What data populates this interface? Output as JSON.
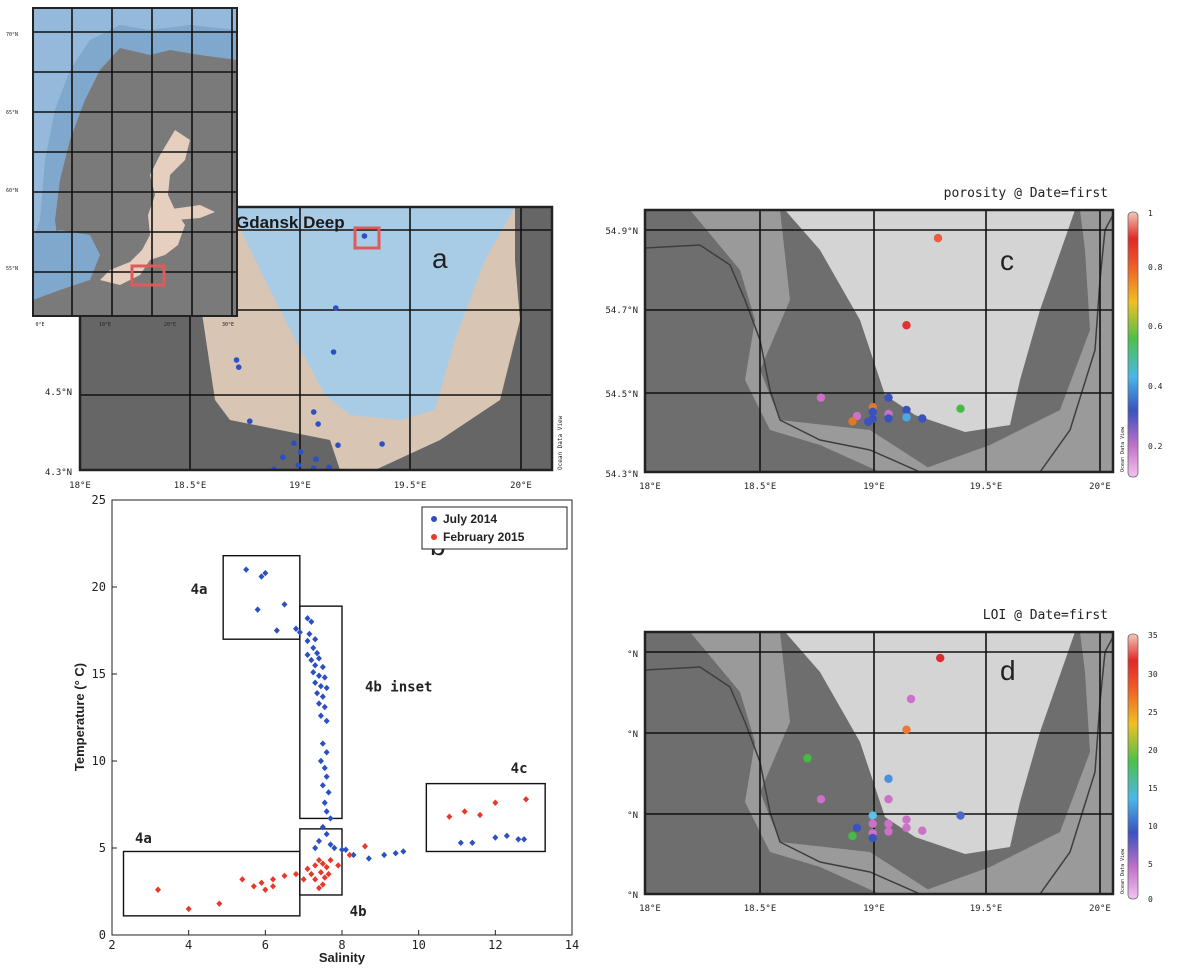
{
  "panel_a": {
    "title": "Gdansk Deep",
    "letter": "a",
    "lat_labels": [
      "4.5°N",
      "4.3°N"
    ],
    "lon_labels": [
      "18°E",
      "18.5°E",
      "19°E",
      "19.5°E",
      "20°E"
    ],
    "side_label": "Ocean Data View",
    "colors": {
      "water": "#a9cce6",
      "land": "#d9c5b4",
      "dark_land": "#666666",
      "point": "#2b4fc4",
      "highlight": "#e05a5a"
    },
    "stations": [
      {
        "lon": 19.29,
        "lat": 54.935
      },
      {
        "lon": 19.16,
        "lat": 54.755
      },
      {
        "lon": 19.15,
        "lat": 54.645
      },
      {
        "lon": 18.71,
        "lat": 54.625
      },
      {
        "lon": 18.72,
        "lat": 54.607
      },
      {
        "lon": 19.06,
        "lat": 54.495
      },
      {
        "lon": 18.77,
        "lat": 54.472
      },
      {
        "lon": 19.08,
        "lat": 54.465
      },
      {
        "lon": 18.97,
        "lat": 54.417
      },
      {
        "lon": 19.17,
        "lat": 54.412
      },
      {
        "lon": 19.37,
        "lat": 54.415
      },
      {
        "lon": 19.0,
        "lat": 54.395
      },
      {
        "lon": 18.92,
        "lat": 54.382
      },
      {
        "lon": 19.07,
        "lat": 54.377
      },
      {
        "lon": 18.99,
        "lat": 54.362
      },
      {
        "lon": 19.06,
        "lat": 54.355
      },
      {
        "lon": 19.13,
        "lat": 54.357
      },
      {
        "lon": 18.88,
        "lat": 54.352
      },
      {
        "lon": 18.9,
        "lat": 54.337
      },
      {
        "lon": 19.2,
        "lat": 54.346
      },
      {
        "lon": 19.29,
        "lat": 54.342
      },
      {
        "lon": 18.97,
        "lat": 54.332
      },
      {
        "lon": 18.99,
        "lat": 54.325
      }
    ]
  },
  "inset": {
    "lat_labels": [
      "70°N",
      "65°N",
      "60°N",
      "55°N"
    ],
    "lon_labels": [
      "0°E",
      "10°E",
      "20°E",
      "30°E"
    ],
    "colors": {
      "sea": "#7fa8cc",
      "land": "#7a7a7a",
      "baltic": "#e6cfbf"
    }
  },
  "panel_b": {
    "letter": "b",
    "chart_data": {
      "type": "scatter",
      "xlabel": "Salinity",
      "ylabel": "Temperature (° C)",
      "xlim": [
        2,
        14
      ],
      "ylim": [
        0,
        25
      ],
      "xticks": [
        2,
        4,
        6,
        8,
        10,
        12,
        14
      ],
      "yticks": [
        0,
        5,
        10,
        15,
        20,
        25
      ],
      "legend_position": "top-right",
      "series": [
        {
          "name": "July 2014",
          "color": "#2b4fc4",
          "points": [
            [
              5.5,
              21
            ],
            [
              5.9,
              20.6
            ],
            [
              6.0,
              20.8
            ],
            [
              5.8,
              18.7
            ],
            [
              6.3,
              17.5
            ],
            [
              6.5,
              19.0
            ],
            [
              6.8,
              17.6
            ],
            [
              6.9,
              17.4
            ],
            [
              7.1,
              18.2
            ],
            [
              7.2,
              18.0
            ],
            [
              7.15,
              17.3
            ],
            [
              7.1,
              16.9
            ],
            [
              7.3,
              17.0
            ],
            [
              7.25,
              16.5
            ],
            [
              7.1,
              16.1
            ],
            [
              7.35,
              16.2
            ],
            [
              7.2,
              15.8
            ],
            [
              7.4,
              15.9
            ],
            [
              7.3,
              15.5
            ],
            [
              7.5,
              15.4
            ],
            [
              7.25,
              15.1
            ],
            [
              7.4,
              14.9
            ],
            [
              7.55,
              14.8
            ],
            [
              7.3,
              14.5
            ],
            [
              7.45,
              14.3
            ],
            [
              7.6,
              14.2
            ],
            [
              7.35,
              13.9
            ],
            [
              7.5,
              13.7
            ],
            [
              7.4,
              13.3
            ],
            [
              7.55,
              13.1
            ],
            [
              7.45,
              12.6
            ],
            [
              7.6,
              12.3
            ],
            [
              7.5,
              11.0
            ],
            [
              7.6,
              10.5
            ],
            [
              7.45,
              10.0
            ],
            [
              7.55,
              9.6
            ],
            [
              7.6,
              9.1
            ],
            [
              7.5,
              8.6
            ],
            [
              7.65,
              8.2
            ],
            [
              7.55,
              7.6
            ],
            [
              7.6,
              7.1
            ],
            [
              7.7,
              6.7
            ],
            [
              7.5,
              6.2
            ],
            [
              7.6,
              5.8
            ],
            [
              7.4,
              5.4
            ],
            [
              7.7,
              5.2
            ],
            [
              7.3,
              5.0
            ],
            [
              7.8,
              5.0
            ],
            [
              8.0,
              4.9
            ],
            [
              8.3,
              4.6
            ],
            [
              8.1,
              4.9
            ],
            [
              8.7,
              4.4
            ],
            [
              9.1,
              4.6
            ],
            [
              9.4,
              4.7
            ],
            [
              9.6,
              4.8
            ],
            [
              11.1,
              5.3
            ],
            [
              11.4,
              5.3
            ],
            [
              12.0,
              5.6
            ],
            [
              12.3,
              5.7
            ],
            [
              12.6,
              5.5
            ],
            [
              12.75,
              5.5
            ]
          ]
        },
        {
          "name": "February 2015",
          "color": "#e8382a",
          "points": [
            [
              3.2,
              2.6
            ],
            [
              4.0,
              1.5
            ],
            [
              4.8,
              1.8
            ],
            [
              5.4,
              3.2
            ],
            [
              5.9,
              3.0
            ],
            [
              5.7,
              2.8
            ],
            [
              6.0,
              2.6
            ],
            [
              6.2,
              2.8
            ],
            [
              6.2,
              3.2
            ],
            [
              6.5,
              3.4
            ],
            [
              6.8,
              3.5
            ],
            [
              7.0,
              3.2
            ],
            [
              7.1,
              3.8
            ],
            [
              7.2,
              3.5
            ],
            [
              7.3,
              4.0
            ],
            [
              7.3,
              3.2
            ],
            [
              7.4,
              4.3
            ],
            [
              7.45,
              3.6
            ],
            [
              7.5,
              4.1
            ],
            [
              7.55,
              3.3
            ],
            [
              7.6,
              3.9
            ],
            [
              7.7,
              4.3
            ],
            [
              7.65,
              3.5
            ],
            [
              7.5,
              2.9
            ],
            [
              7.4,
              2.7
            ],
            [
              7.9,
              4.0
            ],
            [
              8.2,
              4.6
            ],
            [
              8.6,
              5.1
            ],
            [
              10.8,
              6.8
            ],
            [
              11.2,
              7.1
            ],
            [
              11.6,
              6.9
            ],
            [
              12.0,
              7.6
            ],
            [
              12.8,
              7.8
            ]
          ]
        }
      ],
      "annotations": [
        {
          "text": "4a",
          "x": 4.05,
          "y": 19.6
        },
        {
          "text": "4b inset",
          "x": 8.6,
          "y": 14.0
        },
        {
          "text": "4c",
          "x": 12.4,
          "y": 9.3
        },
        {
          "text": "4a",
          "x": 2.6,
          "y": 5.3
        },
        {
          "text": "4b",
          "x": 8.2,
          "y": 1.1
        }
      ],
      "boxes": [
        {
          "x0": 4.9,
          "x1": 6.9,
          "y0": 17.0,
          "y1": 21.8
        },
        {
          "x0": 6.9,
          "x1": 8.0,
          "y0": 6.7,
          "y1": 18.9
        },
        {
          "x0": 6.9,
          "x1": 8.0,
          "y0": 2.3,
          "y1": 6.1
        },
        {
          "x0": 2.3,
          "x1": 6.9,
          "y0": 1.1,
          "y1": 4.8
        },
        {
          "x0": 10.2,
          "x1": 13.3,
          "y0": 4.8,
          "y1": 8.7
        }
      ]
    }
  },
  "panel_c": {
    "title": "porosity @ Date=first",
    "letter": "c",
    "lat_labels": [
      "54.9°N",
      "54.7°N",
      "54.5°N",
      "54.3°N"
    ],
    "lon_labels": [
      "18°E",
      "18.5°E",
      "19°E",
      "19.5°E",
      "20°E"
    ],
    "colorbar_ticks": [
      "1",
      "0.8",
      "0.6",
      "0.4",
      "0.2"
    ],
    "colorbar_label": "Ocean Data View",
    "points": [
      {
        "lon": 19.28,
        "lat": 54.885,
        "color": "#ee5a3c"
      },
      {
        "lon": 19.14,
        "lat": 54.672,
        "color": "#e03030"
      },
      {
        "lon": 18.76,
        "lat": 54.495,
        "color": "#cc70c8"
      },
      {
        "lon": 19.06,
        "lat": 54.495,
        "color": "#3a52c0"
      },
      {
        "lon": 18.99,
        "lat": 54.472,
        "color": "#e07828"
      },
      {
        "lon": 19.38,
        "lat": 54.468,
        "color": "#44bb44"
      },
      {
        "lon": 19.14,
        "lat": 54.465,
        "color": "#3a52c0"
      },
      {
        "lon": 18.99,
        "lat": 54.46,
        "color": "#3a52c0"
      },
      {
        "lon": 19.06,
        "lat": 54.455,
        "color": "#cc70c8"
      },
      {
        "lon": 18.92,
        "lat": 54.45,
        "color": "#cc70c8"
      },
      {
        "lon": 19.14,
        "lat": 54.447,
        "color": "#4aa8e8"
      },
      {
        "lon": 19.06,
        "lat": 54.444,
        "color": "#3a52c0"
      },
      {
        "lon": 19.21,
        "lat": 54.444,
        "color": "#3a52c0"
      },
      {
        "lon": 18.99,
        "lat": 54.443,
        "color": "#3a52c0"
      },
      {
        "lon": 18.9,
        "lat": 54.437,
        "color": "#e07828"
      },
      {
        "lon": 18.97,
        "lat": 54.436,
        "color": "#3a52c0"
      }
    ]
  },
  "panel_d": {
    "title": "LOI @ Date=first",
    "letter": "d",
    "lat_labels": [
      "°N",
      "°N",
      "°N",
      "°N"
    ],
    "lon_labels": [
      "18°E",
      "18.5°E",
      "19°E",
      "19.5°E",
      "20°E"
    ],
    "colorbar_ticks": [
      "35",
      "30",
      "25",
      "20",
      "15",
      "10",
      "5",
      "0"
    ],
    "colorbar_label": "Ocean Data View",
    "points": [
      {
        "lon": 19.29,
        "lat": 54.89,
        "color": "#d83030"
      },
      {
        "lon": 19.16,
        "lat": 54.79,
        "color": "#cc70c8"
      },
      {
        "lon": 19.14,
        "lat": 54.715,
        "color": "#ee7733"
      },
      {
        "lon": 18.7,
        "lat": 54.645,
        "color": "#44bb44"
      },
      {
        "lon": 19.06,
        "lat": 54.595,
        "color": "#4a90e0"
      },
      {
        "lon": 18.76,
        "lat": 54.545,
        "color": "#cc70c8"
      },
      {
        "lon": 19.06,
        "lat": 54.545,
        "color": "#cc70c8"
      },
      {
        "lon": 19.38,
        "lat": 54.505,
        "color": "#4a6ac8"
      },
      {
        "lon": 18.99,
        "lat": 54.505,
        "color": "#5ac0e8"
      },
      {
        "lon": 19.14,
        "lat": 54.495,
        "color": "#cc70c8"
      },
      {
        "lon": 19.06,
        "lat": 54.485,
        "color": "#cc70c8"
      },
      {
        "lon": 18.99,
        "lat": 54.485,
        "color": "#cc70c8"
      },
      {
        "lon": 18.92,
        "lat": 54.475,
        "color": "#3a52c0"
      },
      {
        "lon": 19.14,
        "lat": 54.475,
        "color": "#cc70c8"
      },
      {
        "lon": 19.21,
        "lat": 54.468,
        "color": "#cc70c8"
      },
      {
        "lon": 19.06,
        "lat": 54.466,
        "color": "#cc70c8"
      },
      {
        "lon": 18.99,
        "lat": 54.462,
        "color": "#cc70c8"
      },
      {
        "lon": 18.9,
        "lat": 54.455,
        "color": "#44bb44"
      },
      {
        "lon": 18.99,
        "lat": 54.45,
        "color": "#3a52c0"
      }
    ]
  }
}
